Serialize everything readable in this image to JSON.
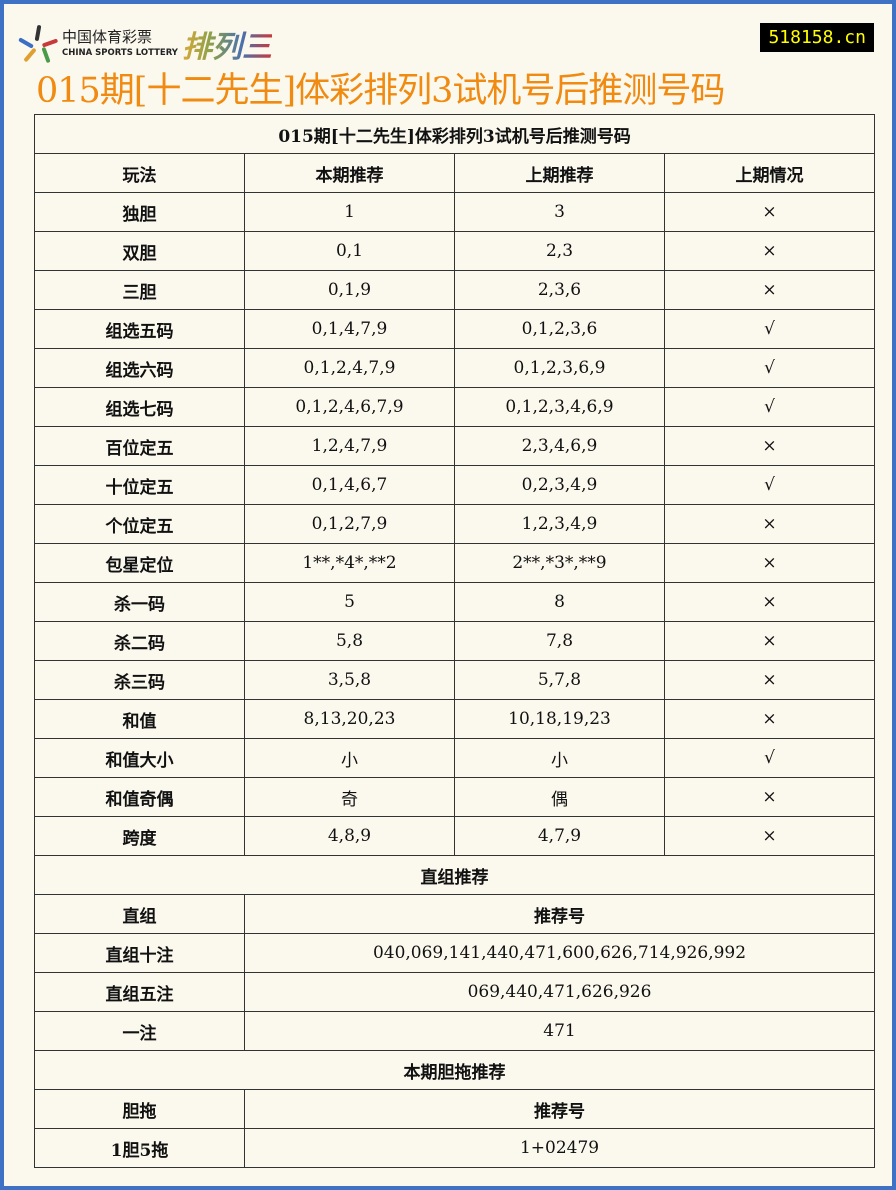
{
  "header": {
    "logo_cn": "中国体育彩票",
    "logo_en": "CHINA SPORTS LOTTERY",
    "logo_game": "排列三",
    "site": "518158.cn",
    "title": "015期[十二先生]体彩排列3试机号后推测号码"
  },
  "table": {
    "caption": "015期[十二先生]体彩排列3试机号后推测号码",
    "headers": [
      "玩法",
      "本期推荐",
      "上期推荐",
      "上期情况"
    ],
    "rows": [
      [
        "独胆",
        "1",
        "3",
        "×"
      ],
      [
        "双胆",
        "0,1",
        "2,3",
        "×"
      ],
      [
        "三胆",
        "0,1,9",
        "2,3,6",
        "×"
      ],
      [
        "组选五码",
        "0,1,4,7,9",
        "0,1,2,3,6",
        "√"
      ],
      [
        "组选六码",
        "0,1,2,4,7,9",
        "0,1,2,3,6,9",
        "√"
      ],
      [
        "组选七码",
        "0,1,2,4,6,7,9",
        "0,1,2,3,4,6,9",
        "√"
      ],
      [
        "百位定五",
        "1,2,4,7,9",
        "2,3,4,6,9",
        "×"
      ],
      [
        "十位定五",
        "0,1,4,6,7",
        "0,2,3,4,9",
        "√"
      ],
      [
        "个位定五",
        "0,1,2,7,9",
        "1,2,3,4,9",
        "×"
      ],
      [
        "包星定位",
        "1**,*4*,**2",
        "2**,*3*,**9",
        "×"
      ],
      [
        "杀一码",
        "5",
        "8",
        "×"
      ],
      [
        "杀二码",
        "5,8",
        "7,8",
        "×"
      ],
      [
        "杀三码",
        "3,5,8",
        "5,7,8",
        "×"
      ],
      [
        "和值",
        "8,13,20,23",
        "10,18,19,23",
        "×"
      ],
      [
        "和值大小",
        "小",
        "小",
        "√"
      ],
      [
        "和值奇偶",
        "奇",
        "偶",
        "×"
      ],
      [
        "跨度",
        "4,8,9",
        "4,7,9",
        "×"
      ]
    ],
    "direct_title": "直组推荐",
    "direct_headers": [
      "直组",
      "推荐号"
    ],
    "direct_rows": [
      [
        "直组十注",
        "040,069,141,440,471,600,626,714,926,992"
      ],
      [
        "直组五注",
        "069,440,471,626,926"
      ],
      [
        "一注",
        "471"
      ]
    ],
    "dantuo_title": "本期胆拖推荐",
    "dantuo_headers": [
      "胆拖",
      "推荐号"
    ],
    "dantuo_rows": [
      [
        "1胆5拖",
        "1+02479"
      ]
    ]
  }
}
